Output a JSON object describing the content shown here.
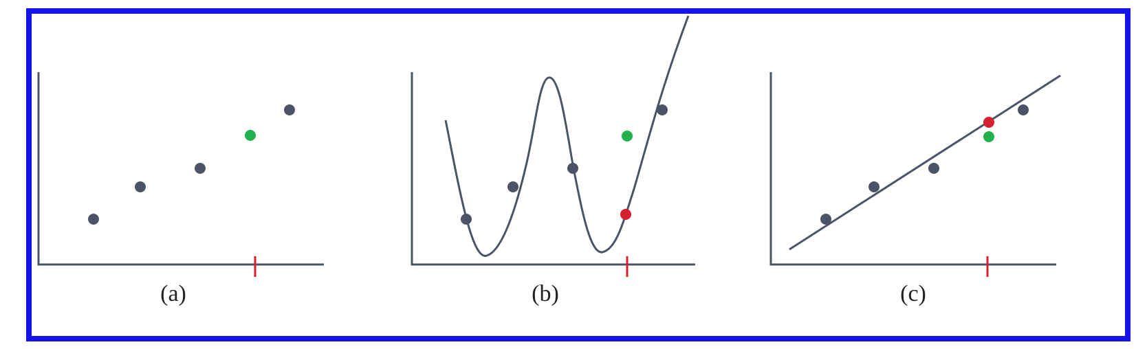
{
  "panels": [
    {
      "caption": "(a)",
      "model": "none",
      "training_points": [
        [
          1,
          1
        ],
        [
          2,
          2.5
        ],
        [
          3,
          3.3
        ],
        [
          5,
          5.1
        ]
      ],
      "query_x": 4,
      "true_value": 4.3,
      "prediction": null
    },
    {
      "caption": "(b)",
      "model": "overfit-wavy-curve",
      "training_points": [
        [
          1,
          1
        ],
        [
          2,
          2.5
        ],
        [
          3,
          3.3
        ],
        [
          5,
          5.1
        ]
      ],
      "query_x": 4,
      "true_value": 4.3,
      "prediction": 1.2
    },
    {
      "caption": "(c)",
      "model": "straight-line",
      "training_points": [
        [
          1,
          1
        ],
        [
          2,
          2.5
        ],
        [
          3,
          3.3
        ],
        [
          5,
          5.1
        ]
      ],
      "query_x": 4,
      "true_value": 4.3,
      "prediction": 4.9
    }
  ],
  "colors": {
    "frame": "#1414e6",
    "axis": "#4a5466",
    "training_point": "#4a5466",
    "true_value": "#22b14c",
    "prediction": "#d42030",
    "query_tick": "#d42030"
  }
}
